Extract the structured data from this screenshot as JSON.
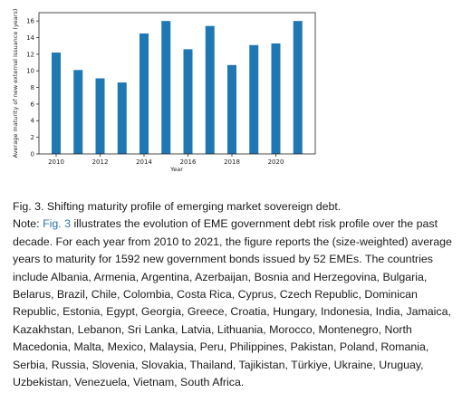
{
  "chart_data": {
    "type": "bar",
    "categories": [
      "2010",
      "2011",
      "2012",
      "2013",
      "2014",
      "2015",
      "2016",
      "2017",
      "2018",
      "2019",
      "2020",
      "2021"
    ],
    "values": [
      12.2,
      10.1,
      9.1,
      8.6,
      14.5,
      16.0,
      12.6,
      15.4,
      10.7,
      13.1,
      13.3,
      16.0
    ],
    "xlabel": "Year",
    "ylabel": "Average maturity of new external issuance (years)",
    "ylim": [
      0,
      17
    ],
    "yticks": [
      "0",
      "2",
      "4",
      "6",
      "8",
      "10",
      "12",
      "14",
      "16"
    ],
    "xticks": [
      "2010",
      "2012",
      "2014",
      "2016",
      "2018",
      "2020"
    ],
    "bar_color": "#1f77b4",
    "grid": false
  },
  "caption": {
    "title": "Fig. 3. Shifting maturity profile of emerging market sovereign debt.",
    "note_prefix": "Note: ",
    "fig_ref": "Fig. 3",
    "note_body": " illustrates the evolution of EME government debt risk profile over the past decade. For each year from 2010 to 2021, the figure reports the (size-weighted) average years to maturity for 1592 new government bonds issued by 52 EMEs. The countries include Albania, Armenia, Argentina, Azerbaijan, Bosnia and Herzegovina, Bulgaria, Belarus, Brazil, Chile, Colombia, Costa Rica, Cyprus, Czech Republic, Dominican Republic, Estonia, Egypt, Georgia, Greece, Croatia, Hungary, Indonesia, India, Jamaica, Kazakhstan, Lebanon, Sri Lanka, Latvia, Lithuania, Morocco, Montenegro, North Macedonia, Malta, Mexico, Malaysia, Peru, Philippines, Pakistan, Poland, Romania, Serbia, Russia, Slovenia, Slovakia, Thailand, Tajikistan, Türkiye, Ukraine, Uruguay, Uzbekistan, Venezuela, Vietnam, South Africa."
  }
}
